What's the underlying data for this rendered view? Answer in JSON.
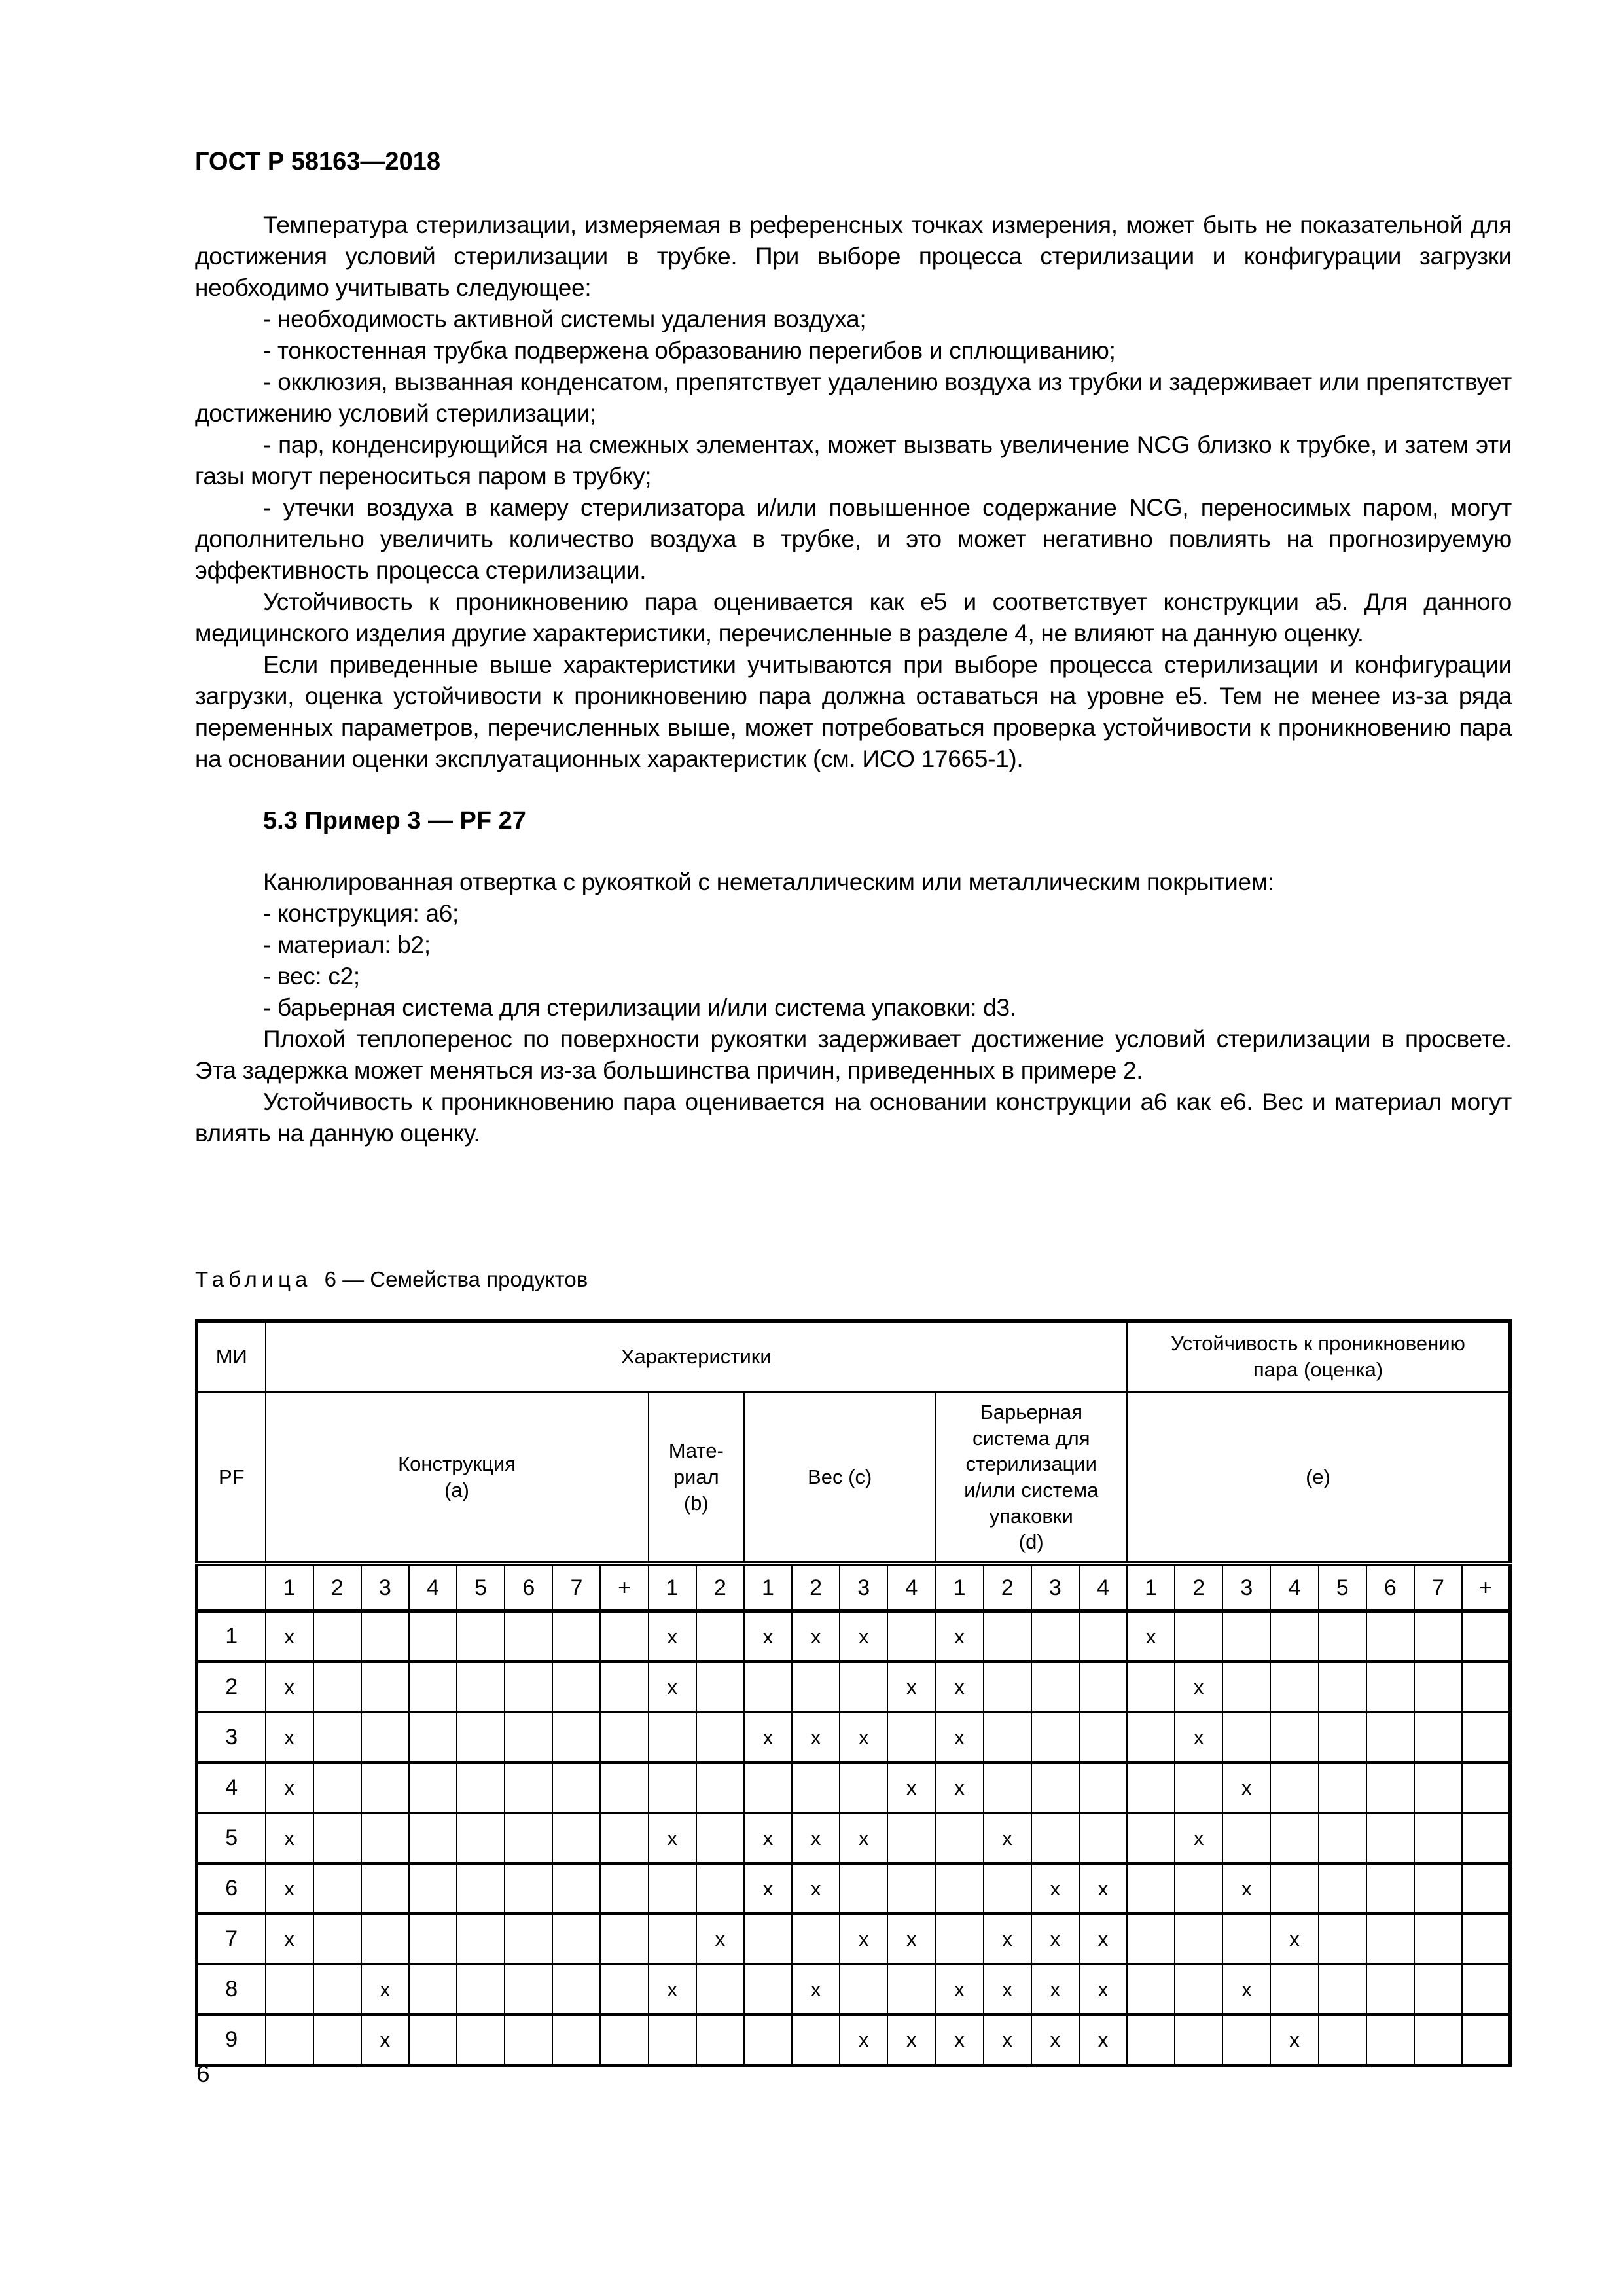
{
  "colors": {
    "ink": "#000000",
    "paper": "#ffffff"
  },
  "header": {
    "code": "ГОСТ Р 58163—2018"
  },
  "footer": {
    "page_number": "6"
  },
  "content": {
    "intro": [
      "Температура стерилизации, измеряемая в референсных точках измерения, может быть не показательной для достижения условий стерилизации в трубке. При выборе процесса стерилизации и конфигурации загрузки необходимо учитывать следующее:",
      "- необходимость активной системы удаления воздуха;",
      "- тонкостенная трубка подвержена образованию перегибов и сплющиванию;",
      "- окклюзия, вызванная конденсатом, препятствует удалению воздуха из трубки и задерживает или препятствует достижению условий стерилизации;",
      "- пар, конденсирующийся на смежных элементах, может вызвать увеличение NCG близко к трубке, и затем эти газы могут переноситься паром в трубку;",
      "- утечки воздуха в камеру стерилизатора и/или повышенное содержание NCG, переносимых паром, могут дополнительно увеличить количество воздуха в трубке, и это может негативно повлиять на прогнозируемую эффективность процесса стерилизации.",
      "Устойчивость к проникновению пара оценивается как e5 и соответствует конструкции a5. Для данного медицинского изделия другие характеристики, перечисленные в разделе 4, не влияют на данную оценку.",
      "Если приведенные выше характеристики учитываются при выборе процесса стерилизации и конфигурации загрузки, оценка устойчивости к проникновению пара должна оставаться на уровне e5. Тем не менее из-за ряда переменных параметров, перечисленных выше, может потребоваться проверка устойчивости к проникновению пара на основании оценки эксплуатационных характеристик (см. ИСО 17665-1)."
    ],
    "section_heading": "5.3 Пример 3 — PF 27",
    "example": [
      "Канюлированная отвертка с рукояткой с неметаллическим или металлическим покрытием:",
      "- конструкция: a6;",
      "- материал: b2;",
      "- вес: c2;",
      "- барьерная система для стерилизации и/или система упаковки: d3.",
      "Плохой теплоперенос по поверхности рукоятки задерживает достижение условий стерилизации в просвете. Эта задержка может меняться из-за большинства причин, приведенных в примере 2.",
      "Устойчивость к проникновению пара оценивается на основании конструкции a6 как e6. Вес и материал могут влиять на данную оценку."
    ]
  },
  "table": {
    "caption_word": "Таблица",
    "caption_rest": "6 — Семейства продуктов",
    "header": {
      "col1_row1": "МИ",
      "col1_row2": "PF",
      "characteristics": "Характеристики",
      "resistance": "Устойчивость к проникновению\nпара (оценка)",
      "groups": [
        {
          "label": "Конструкция\n(a)",
          "span": 8
        },
        {
          "label": "Мате-\nриал\n(b)",
          "span": 2
        },
        {
          "label": "Вес (c)",
          "span": 4
        },
        {
          "label": "Барьерная\nсистема для\nстерилизации\nи/или система\nупаковки\n(d)",
          "span": 4
        },
        {
          "label": "(e)",
          "span": 8
        }
      ]
    },
    "sub_numbers": [
      "1",
      "2",
      "3",
      "4",
      "5",
      "6",
      "7",
      "+",
      "1",
      "2",
      "1",
      "2",
      "3",
      "4",
      "1",
      "2",
      "3",
      "4",
      "1",
      "2",
      "3",
      "4",
      "5",
      "6",
      "7",
      "+"
    ],
    "mark_symbol": "x",
    "rows": [
      {
        "label": "1",
        "marks": [
          "x",
          "",
          "",
          "",
          "",
          "",
          "",
          "",
          "x",
          "",
          "x",
          "x",
          "x",
          "",
          "x",
          "",
          "",
          "",
          "x",
          "",
          "",
          "",
          "",
          "",
          "",
          ""
        ]
      },
      {
        "label": "2",
        "marks": [
          "x",
          "",
          "",
          "",
          "",
          "",
          "",
          "",
          "x",
          "",
          "",
          "",
          "",
          "x",
          "x",
          "",
          "",
          "",
          "",
          "x",
          "",
          "",
          "",
          "",
          "",
          ""
        ]
      },
      {
        "label": "3",
        "marks": [
          "x",
          "",
          "",
          "",
          "",
          "",
          "",
          "",
          "",
          "",
          "x",
          "x",
          "x",
          "",
          "x",
          "",
          "",
          "",
          "",
          "x",
          "",
          "",
          "",
          "",
          "",
          ""
        ]
      },
      {
        "label": "4",
        "marks": [
          "x",
          "",
          "",
          "",
          "",
          "",
          "",
          "",
          "",
          "",
          "",
          "",
          "",
          "x",
          "x",
          "",
          "",
          "",
          "",
          "",
          "x",
          "",
          "",
          "",
          "",
          ""
        ]
      },
      {
        "label": "5",
        "marks": [
          "x",
          "",
          "",
          "",
          "",
          "",
          "",
          "",
          "x",
          "",
          "x",
          "x",
          "x",
          "",
          "",
          "x",
          "",
          "",
          "",
          "x",
          "",
          "",
          "",
          "",
          "",
          ""
        ]
      },
      {
        "label": "6",
        "marks": [
          "x",
          "",
          "",
          "",
          "",
          "",
          "",
          "",
          "",
          "",
          "x",
          "x",
          "",
          "",
          "",
          "",
          "x",
          "x",
          "",
          "",
          "x",
          "",
          "",
          "",
          "",
          ""
        ]
      },
      {
        "label": "7",
        "marks": [
          "x",
          "",
          "",
          "",
          "",
          "",
          "",
          "",
          "",
          "x",
          "",
          "",
          "x",
          "x",
          "",
          "x",
          "x",
          "x",
          "",
          "",
          "",
          "x",
          "",
          "",
          "",
          ""
        ]
      },
      {
        "label": "8",
        "marks": [
          "",
          "",
          "x",
          "",
          "",
          "",
          "",
          "",
          "x",
          "",
          "",
          "x",
          "",
          "",
          "x",
          "x",
          "x",
          "x",
          "",
          "",
          "x",
          "",
          "",
          "",
          "",
          ""
        ]
      },
      {
        "label": "9",
        "marks": [
          "",
          "",
          "x",
          "",
          "",
          "",
          "",
          "",
          "",
          "",
          "",
          "",
          "x",
          "x",
          "x",
          "x",
          "x",
          "x",
          "",
          "",
          "",
          "x",
          "",
          "",
          "",
          ""
        ]
      }
    ]
  }
}
